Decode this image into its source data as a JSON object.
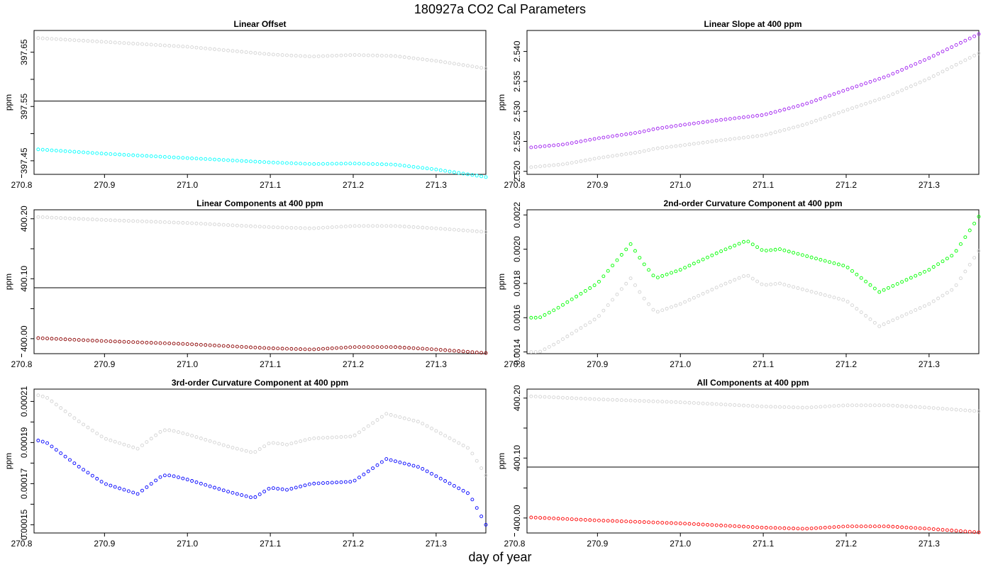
{
  "page": {
    "title": "180927a   CO2 Cal Parameters",
    "xlabel": "day of year"
  },
  "chart_data": [
    {
      "type": "scatter",
      "title": "Linear Offset",
      "ylabel": "ppm",
      "xlim": [
        270.815,
        271.36
      ],
      "ylim": [
        397.425,
        397.69
      ],
      "xticks": [
        "270.8",
        "270.9",
        "271.0",
        "271.1",
        "271.2",
        "271.3"
      ],
      "yticks": [
        "397.45",
        "397.55",
        "397.65"
      ],
      "minor_yticks": [
        397.5,
        397.6
      ],
      "hline": 397.56,
      "series": [
        {
          "color": "#d3d3d3",
          "shape": [
            [
              270.82,
              397.676
            ],
            [
              270.9,
              397.669
            ],
            [
              271.0,
              397.66
            ],
            [
              271.1,
              397.646
            ],
            [
              271.15,
              397.642
            ],
            [
              271.2,
              397.645
            ],
            [
              271.25,
              397.643
            ],
            [
              271.3,
              397.634
            ],
            [
              271.36,
              397.62
            ]
          ]
        },
        {
          "color": "#00ffff",
          "shape": [
            [
              270.82,
              397.471
            ],
            [
              270.9,
              397.463
            ],
            [
              271.0,
              397.455
            ],
            [
              271.1,
              397.447
            ],
            [
              271.15,
              397.444
            ],
            [
              271.2,
              397.445
            ],
            [
              271.25,
              397.443
            ],
            [
              271.3,
              397.434
            ],
            [
              271.36,
              397.42
            ]
          ]
        }
      ]
    },
    {
      "type": "scatter",
      "title": "Linear Slope at 400 ppm",
      "ylabel": "ppm",
      "xlim": [
        270.815,
        271.36
      ],
      "ylim": [
        2.5195,
        2.5435
      ],
      "xticks": [
        "270.8",
        "270.9",
        "271.0",
        "271.1",
        "271.2",
        "271.3"
      ],
      "yticks": [
        "2.520",
        "2.525",
        "2.530",
        "2.535",
        "2.540"
      ],
      "minor_yticks": [],
      "hline": null,
      "series": [
        {
          "color": "#d3d3d3",
          "shape": [
            [
              270.82,
              2.5207
            ],
            [
              270.86,
              2.5212
            ],
            [
              270.9,
              2.5222
            ],
            [
              270.95,
              2.5232
            ],
            [
              270.97,
              2.5238
            ],
            [
              271.0,
              2.5243
            ],
            [
              271.05,
              2.5252
            ],
            [
              271.1,
              2.526
            ],
            [
              271.15,
              2.5278
            ],
            [
              271.2,
              2.5302
            ],
            [
              271.25,
              2.5325
            ],
            [
              271.3,
              2.5355
            ],
            [
              271.36,
              2.5397
            ]
          ]
        },
        {
          "color": "#a020f0",
          "shape": [
            [
              270.82,
              2.524
            ],
            [
              270.86,
              2.5245
            ],
            [
              270.9,
              2.5255
            ],
            [
              270.95,
              2.5265
            ],
            [
              270.97,
              2.5271
            ],
            [
              271.0,
              2.5277
            ],
            [
              271.05,
              2.5286
            ],
            [
              271.1,
              2.5294
            ],
            [
              271.15,
              2.5312
            ],
            [
              271.2,
              2.5336
            ],
            [
              271.25,
              2.5359
            ],
            [
              271.3,
              2.5389
            ],
            [
              271.36,
              2.5429
            ]
          ]
        }
      ]
    },
    {
      "type": "scatter",
      "title": "Linear Components at 400 ppm",
      "ylabel": "ppm",
      "xlim": [
        270.815,
        271.36
      ],
      "ylim": [
        399.975,
        400.215
      ],
      "xticks": [
        "270.8",
        "270.9",
        "271.0",
        "271.1",
        "271.2",
        "271.3"
      ],
      "yticks": [
        "400.00",
        "400.10",
        "400.20"
      ],
      "minor_yticks": [
        400.05,
        400.15
      ],
      "hline": 400.085,
      "series": [
        {
          "color": "#d3d3d3",
          "shape": [
            [
              270.82,
              400.203
            ],
            [
              270.9,
              400.198
            ],
            [
              271.0,
              400.193
            ],
            [
              271.1,
              400.186
            ],
            [
              271.15,
              400.184
            ],
            [
              271.2,
              400.188
            ],
            [
              271.25,
              400.188
            ],
            [
              271.3,
              400.184
            ],
            [
              271.36,
              400.178
            ]
          ]
        },
        {
          "color": "#8b0000",
          "shape": [
            [
              270.82,
              400.001
            ],
            [
              270.9,
              399.996
            ],
            [
              271.0,
              399.991
            ],
            [
              271.1,
              399.984
            ],
            [
              271.15,
              399.982
            ],
            [
              271.2,
              399.986
            ],
            [
              271.25,
              399.986
            ],
            [
              271.3,
              399.982
            ],
            [
              271.36,
              399.976
            ]
          ]
        }
      ]
    },
    {
      "type": "scatter",
      "title": "2nd-order Curvature Component at 400 ppm",
      "ylabel": "ppm",
      "xlim": [
        270.815,
        271.36
      ],
      "ylim": [
        0.00139,
        0.00223
      ],
      "xticks": [
        "270.8",
        "270.9",
        "271.0",
        "271.1",
        "271.2",
        "271.3"
      ],
      "yticks": [
        "0.0014",
        "0.0016",
        "0.0018",
        "0.0020",
        "0.0022"
      ],
      "minor_yticks": [],
      "hline": null,
      "series": [
        {
          "color": "#d3d3d3",
          "shape": [
            [
              270.82,
              0.0014
            ],
            [
              270.83,
              0.0014
            ],
            [
              270.85,
              0.00145
            ],
            [
              270.9,
              0.0016
            ],
            [
              270.94,
              0.00183
            ],
            [
              270.955,
              0.00172
            ],
            [
              270.97,
              0.00163
            ],
            [
              271.0,
              0.00168
            ],
            [
              271.05,
              0.00179
            ],
            [
              271.08,
              0.00185
            ],
            [
              271.1,
              0.00179
            ],
            [
              271.12,
              0.0018
            ],
            [
              271.2,
              0.0017
            ],
            [
              271.24,
              0.00155
            ],
            [
              271.3,
              0.00168
            ],
            [
              271.33,
              0.00177
            ],
            [
              271.36,
              0.00199
            ]
          ]
        },
        {
          "color": "#00ff00",
          "shape": [
            [
              270.82,
              0.0016
            ],
            [
              270.83,
              0.0016
            ],
            [
              270.85,
              0.00165
            ],
            [
              270.9,
              0.0018
            ],
            [
              270.94,
              0.00203
            ],
            [
              270.955,
              0.00192
            ],
            [
              270.97,
              0.00183
            ],
            [
              271.0,
              0.00188
            ],
            [
              271.05,
              0.00199
            ],
            [
              271.08,
              0.00205
            ],
            [
              271.1,
              0.00199
            ],
            [
              271.12,
              0.002
            ],
            [
              271.2,
              0.0019
            ],
            [
              271.24,
              0.00175
            ],
            [
              271.3,
              0.00188
            ],
            [
              271.33,
              0.00197
            ],
            [
              271.36,
              0.00219
            ]
          ]
        }
      ]
    },
    {
      "type": "scatter",
      "title": "3rd-order Curvature Component at 400 ppm",
      "ylabel": "ppm",
      "xlim": [
        270.815,
        271.36
      ],
      "ylim": [
        0.000146,
        0.000216
      ],
      "xticks": [
        "270.8",
        "270.9",
        "271.0",
        "271.1",
        "271.2",
        "271.3"
      ],
      "yticks": [
        "0.00015",
        "0.00017",
        "0.00019",
        "0.00021"
      ],
      "minor_yticks": [
        0.00016,
        0.00018,
        0.0002
      ],
      "hline": null,
      "series": [
        {
          "color": "#d3d3d3",
          "shape": [
            [
              270.82,
              0.000213
            ],
            [
              270.83,
              0.000212
            ],
            [
              270.87,
              0.0002
            ],
            [
              270.9,
              0.000192
            ],
            [
              270.94,
              0.000187
            ],
            [
              270.97,
              0.000196
            ],
            [
              270.98,
              0.000196
            ],
            [
              271.0,
              0.000194
            ],
            [
              271.05,
              0.000188
            ],
            [
              271.08,
              0.000185
            ],
            [
              271.1,
              0.00019
            ],
            [
              271.12,
              0.000189
            ],
            [
              271.15,
              0.000192
            ],
            [
              271.2,
              0.000193
            ],
            [
              271.24,
              0.000204
            ],
            [
              271.28,
              0.0002
            ],
            [
              271.34,
              0.000187
            ],
            [
              271.36,
              0.000174
            ]
          ]
        },
        {
          "color": "#0000ff",
          "shape": [
            [
              270.82,
              0.000191
            ],
            [
              270.83,
              0.00019
            ],
            [
              270.87,
              0.000178
            ],
            [
              270.9,
              0.00017
            ],
            [
              270.94,
              0.000165
            ],
            [
              270.97,
              0.000174
            ],
            [
              270.98,
              0.000174
            ],
            [
              271.0,
              0.000172
            ],
            [
              271.05,
              0.000166
            ],
            [
              271.08,
              0.000163
            ],
            [
              271.1,
              0.000168
            ],
            [
              271.12,
              0.000167
            ],
            [
              271.15,
              0.00017
            ],
            [
              271.2,
              0.000171
            ],
            [
              271.24,
              0.000182
            ],
            [
              271.28,
              0.000178
            ],
            [
              271.34,
              0.000165
            ],
            [
              271.36,
              0.00015
            ]
          ]
        }
      ]
    },
    {
      "type": "scatter",
      "title": "All Components at 400 ppm",
      "ylabel": "ppm",
      "xlim": [
        270.815,
        271.36
      ],
      "ylim": [
        399.975,
        400.215
      ],
      "xticks": [
        "270.8",
        "270.9",
        "271.0",
        "271.1",
        "271.2",
        "271.3"
      ],
      "yticks": [
        "400.00",
        "400.10",
        "400.20"
      ],
      "minor_yticks": [
        400.05,
        400.15
      ],
      "hline": 400.085,
      "series": [
        {
          "color": "#d3d3d3",
          "shape": [
            [
              270.82,
              400.203
            ],
            [
              270.9,
              400.198
            ],
            [
              271.0,
              400.193
            ],
            [
              271.1,
              400.186
            ],
            [
              271.15,
              400.184
            ],
            [
              271.2,
              400.188
            ],
            [
              271.25,
              400.188
            ],
            [
              271.3,
              400.184
            ],
            [
              271.36,
              400.178
            ]
          ]
        },
        {
          "color": "#ff0000",
          "shape": [
            [
              270.82,
              400.001
            ],
            [
              270.9,
              399.996
            ],
            [
              271.0,
              399.991
            ],
            [
              271.1,
              399.984
            ],
            [
              271.15,
              399.982
            ],
            [
              271.2,
              399.986
            ],
            [
              271.25,
              399.986
            ],
            [
              271.3,
              399.982
            ],
            [
              271.36,
              399.976
            ]
          ]
        }
      ]
    }
  ]
}
